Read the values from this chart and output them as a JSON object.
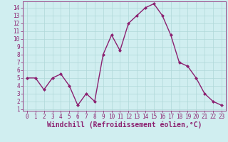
{
  "x": [
    0,
    1,
    2,
    3,
    4,
    5,
    6,
    7,
    8,
    9,
    10,
    11,
    12,
    13,
    14,
    15,
    16,
    17,
    18,
    19,
    20,
    21,
    22,
    23
  ],
  "y": [
    5,
    5,
    3.5,
    5,
    5.5,
    4,
    1.5,
    3,
    2,
    8,
    10.5,
    8.5,
    12,
    13,
    14,
    14.5,
    13,
    10.5,
    7,
    6.5,
    5,
    3,
    2,
    1.5
  ],
  "line_color": "#8b2070",
  "marker": "D",
  "marker_size": 2,
  "bg_color": "#d0eef0",
  "grid_color": "#b0d8d8",
  "xlabel": "Windchill (Refroidissement éolien,°C)",
  "xlabel_color": "#8b2070",
  "xlabel_fontsize": 7,
  "xlim": [
    -0.5,
    23.5
  ],
  "ylim_min": 0.8,
  "ylim_max": 14.8,
  "yticks": [
    1,
    2,
    3,
    4,
    5,
    6,
    7,
    8,
    9,
    10,
    11,
    12,
    13,
    14
  ],
  "xticks": [
    0,
    1,
    2,
    3,
    4,
    5,
    6,
    7,
    8,
    9,
    10,
    11,
    12,
    13,
    14,
    15,
    16,
    17,
    18,
    19,
    20,
    21,
    22,
    23
  ],
  "tick_color": "#8b2070",
  "tick_fontsize": 5.5,
  "linewidth": 1.0
}
